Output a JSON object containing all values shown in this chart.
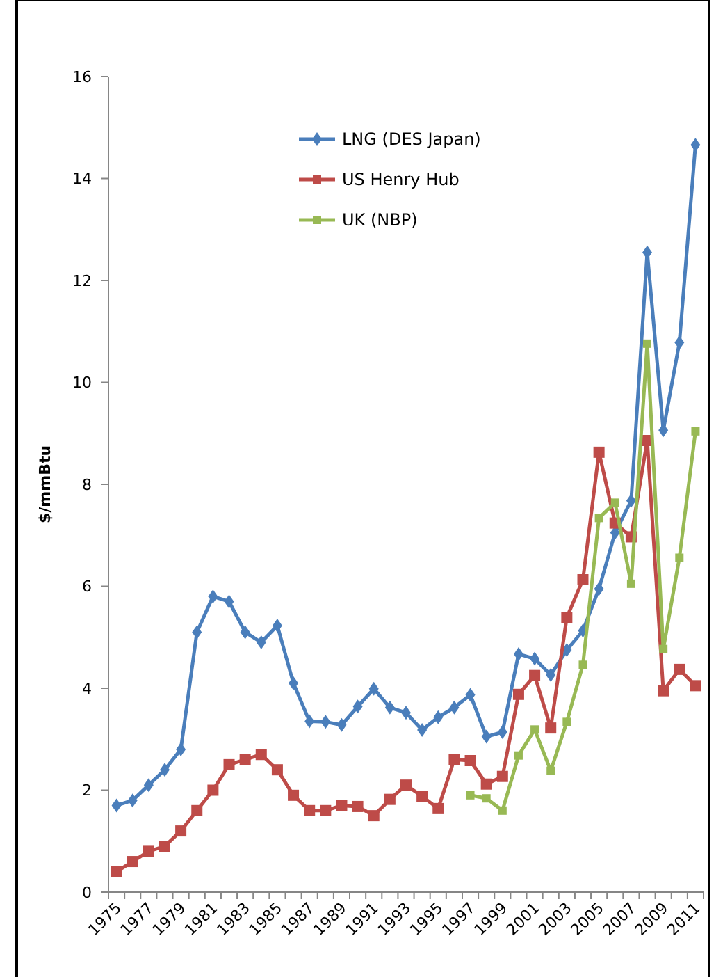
{
  "chart_data": {
    "type": "line",
    "ylabel": "$/mmBtu",
    "categories": [
      "1975",
      null,
      "1977",
      null,
      "1979",
      null,
      "1981",
      null,
      "1983",
      null,
      "1985",
      null,
      "1987",
      null,
      "1989",
      null,
      "1991",
      null,
      "1993",
      null,
      "1995",
      null,
      "1997",
      null,
      "1999",
      null,
      "2001",
      null,
      "2003",
      null,
      "2005",
      null,
      "2007",
      null,
      "2009",
      null,
      "2011"
    ],
    "ylim": [
      0,
      16
    ],
    "yticks": [
      0,
      2,
      4,
      6,
      8,
      10,
      12,
      14,
      16
    ],
    "grid": false,
    "legend": "top",
    "line_style": "solid",
    "series": [
      {
        "name": "LNG (DES Japan)",
        "color": "#4a7ebb",
        "marker": "diamond",
        "values": [
          1.7,
          1.8,
          2.1,
          2.4,
          2.8,
          5.1,
          5.8,
          5.7,
          5.1,
          4.9,
          5.23,
          4.1,
          3.35,
          3.34,
          3.28,
          3.64,
          3.99,
          3.62,
          3.52,
          3.18,
          3.43,
          3.62,
          3.87,
          3.05,
          3.14,
          4.67,
          4.58,
          4.26,
          4.75,
          5.13,
          5.95,
          7.05,
          7.68,
          12.55,
          9.06,
          10.78,
          14.66
        ]
      },
      {
        "name": "US Henry Hub",
        "color": "#be4b48",
        "marker": "square",
        "values": [
          0.4,
          0.6,
          0.8,
          0.9,
          1.2,
          1.6,
          2.0,
          2.5,
          2.6,
          2.7,
          2.4,
          1.9,
          1.6,
          1.6,
          1.7,
          1.68,
          1.5,
          1.82,
          2.1,
          1.88,
          1.64,
          2.6,
          2.58,
          2.12,
          2.27,
          3.88,
          4.25,
          3.22,
          5.39,
          6.13,
          8.63,
          7.24,
          6.97,
          8.86,
          3.95,
          4.37,
          4.05
        ]
      },
      {
        "name": "UK (NBP)",
        "color": "#98b954",
        "marker": "square",
        "values": [
          null,
          null,
          null,
          null,
          null,
          null,
          null,
          null,
          null,
          null,
          null,
          null,
          null,
          null,
          null,
          null,
          null,
          null,
          null,
          null,
          null,
          null,
          1.9,
          1.84,
          1.6,
          2.68,
          3.19,
          2.38,
          3.34,
          4.46,
          7.34,
          7.64,
          6.05,
          10.76,
          4.77,
          6.56,
          9.04
        ]
      }
    ]
  }
}
